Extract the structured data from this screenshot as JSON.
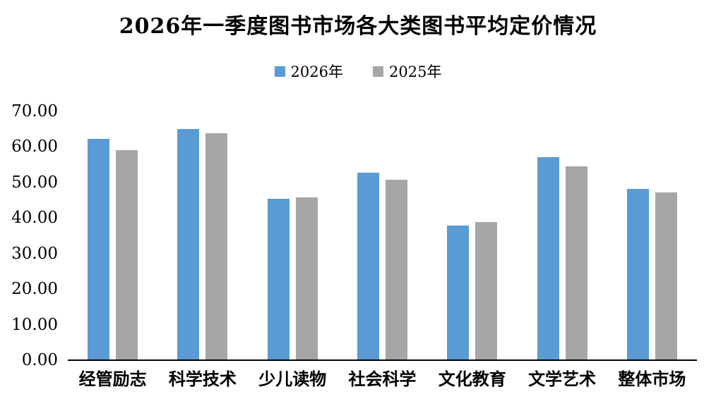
{
  "title": "2026年一季度图书市场各大类图书平均定价情况",
  "colors": {
    "series_2026": "#5B9BD5",
    "series_2025": "#A6A6A6",
    "axis": "#000000",
    "background": "#FFFFFF",
    "text": "#000000"
  },
  "legend": {
    "items": [
      {
        "key": "2026",
        "label": "2026年",
        "color": "#5B9BD5"
      },
      {
        "key": "2025",
        "label": "2025年",
        "color": "#A6A6A6"
      }
    ]
  },
  "chart_data": {
    "type": "bar",
    "title": "2026年一季度图书市场各大类图书平均定价情况",
    "categories": [
      "经管励志",
      "科学技术",
      "少儿读物",
      "社会科学",
      "文化教育",
      "文学艺术",
      "整体市场"
    ],
    "series": [
      {
        "key": "2026",
        "name": "2026年",
        "color": "#5B9BD5",
        "values": [
          62.0,
          64.8,
          45.3,
          52.5,
          37.6,
          57.0,
          47.9
        ]
      },
      {
        "key": "2025",
        "name": "2025年",
        "color": "#A6A6A6",
        "values": [
          58.8,
          63.6,
          45.7,
          50.5,
          38.6,
          54.4,
          46.9
        ]
      }
    ],
    "xlabel": "",
    "ylabel": "",
    "ylim": [
      0,
      70
    ],
    "ytick_step": 10,
    "ytick_labels": [
      "0.00",
      "10.00",
      "20.00",
      "30.00",
      "40.00",
      "50.00",
      "60.00",
      "70.00"
    ],
    "grid": false,
    "legend_position": "top-center"
  }
}
